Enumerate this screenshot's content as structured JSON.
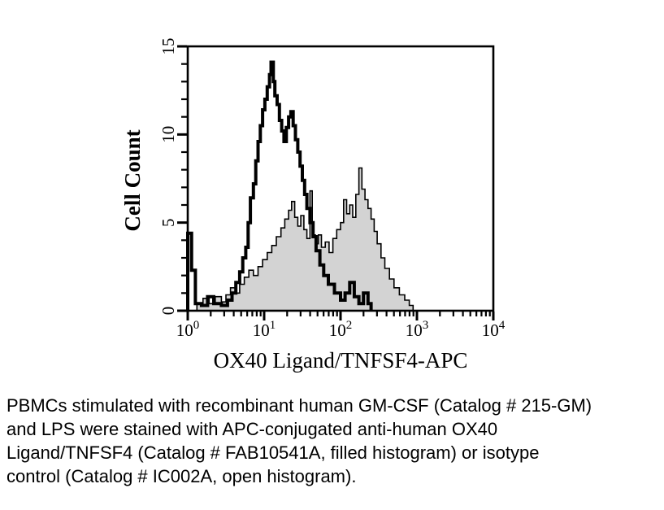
{
  "figure": {
    "y_axis": {
      "label": "Cell Count",
      "ticks": [
        0,
        5,
        10,
        15
      ],
      "minor_step": 1,
      "max": 15
    },
    "x_axis": {
      "label": "OX40 Ligand/TNFSF4-APC",
      "tick_base": "10",
      "decade_exponents": [
        0,
        1,
        2,
        3,
        4
      ]
    },
    "colors": {
      "frame": "#000000",
      "open_stroke": "#000000",
      "filled_fill": "#d3d3d3",
      "filled_stroke": "#000000",
      "background": "#ffffff"
    }
  },
  "chart_data": {
    "type": "area",
    "subtype": "flow-cytometry-overlay-histogram",
    "title": "",
    "xlabel": "OX40 Ligand/TNFSF4-APC",
    "ylabel": "Cell Count",
    "x_scale": "log10",
    "xlim_log10": [
      0,
      4
    ],
    "ylim": [
      0,
      15
    ],
    "grid": false,
    "legend": "none (styles described in caption)",
    "series": [
      {
        "name": "anti-human OX40 Ligand/TNFSF4 (FAB10541A, filled histogram)",
        "style": "filled",
        "fill": "#d3d3d3",
        "stroke": "#000000",
        "stroke_width": 1.6,
        "points_log10x_count": [
          [
            0.12,
            0.4
          ],
          [
            0.2,
            0.7
          ],
          [
            0.28,
            0.4
          ],
          [
            0.36,
            0.8
          ],
          [
            0.44,
            0.5
          ],
          [
            0.5,
            0.9
          ],
          [
            0.56,
            1.3
          ],
          [
            0.62,
            1.0
          ],
          [
            0.68,
            1.5
          ],
          [
            0.74,
            1.9
          ],
          [
            0.8,
            2.3
          ],
          [
            0.86,
            2.0
          ],
          [
            0.92,
            2.5
          ],
          [
            0.98,
            2.9
          ],
          [
            1.04,
            3.3
          ],
          [
            1.1,
            3.7
          ],
          [
            1.16,
            4.2
          ],
          [
            1.22,
            4.7
          ],
          [
            1.27,
            5.2
          ],
          [
            1.32,
            5.7
          ],
          [
            1.36,
            6.2
          ],
          [
            1.4,
            5.3
          ],
          [
            1.44,
            4.8
          ],
          [
            1.48,
            5.4
          ],
          [
            1.52,
            4.6
          ],
          [
            1.56,
            4.1
          ],
          [
            1.6,
            6.8
          ],
          [
            1.63,
            4.3
          ],
          [
            1.67,
            3.8
          ],
          [
            1.71,
            4.3
          ],
          [
            1.75,
            3.6
          ],
          [
            1.8,
            3.9
          ],
          [
            1.85,
            3.3
          ],
          [
            1.9,
            4.1
          ],
          [
            1.95,
            4.6
          ],
          [
            2.0,
            5.0
          ],
          [
            2.04,
            6.3
          ],
          [
            2.08,
            5.5
          ],
          [
            2.12,
            6.0
          ],
          [
            2.16,
            5.3
          ],
          [
            2.2,
            6.6
          ],
          [
            2.24,
            8.1
          ],
          [
            2.28,
            6.9
          ],
          [
            2.32,
            6.3
          ],
          [
            2.36,
            5.8
          ],
          [
            2.4,
            5.2
          ],
          [
            2.44,
            4.5
          ],
          [
            2.48,
            3.8
          ],
          [
            2.53,
            3.0
          ],
          [
            2.58,
            2.4
          ],
          [
            2.64,
            1.8
          ],
          [
            2.7,
            1.3
          ],
          [
            2.77,
            0.9
          ],
          [
            2.84,
            0.6
          ],
          [
            2.9,
            0.3
          ],
          [
            2.95,
            0.0
          ]
        ]
      },
      {
        "name": "isotype control (IC002A, open histogram)",
        "style": "open",
        "fill": "none",
        "stroke": "#000000",
        "stroke_width": 4,
        "points_log10x_count": [
          [
            0.0,
            4.4
          ],
          [
            0.05,
            2.3
          ],
          [
            0.1,
            0.4
          ],
          [
            0.18,
            0.3
          ],
          [
            0.26,
            0.8
          ],
          [
            0.34,
            0.4
          ],
          [
            0.44,
            0.3
          ],
          [
            0.52,
            0.6
          ],
          [
            0.58,
            1.0
          ],
          [
            0.63,
            1.6
          ],
          [
            0.68,
            2.2
          ],
          [
            0.72,
            3.0
          ],
          [
            0.76,
            3.6
          ],
          [
            0.79,
            5.0
          ],
          [
            0.82,
            6.4
          ],
          [
            0.86,
            7.2
          ],
          [
            0.89,
            8.5
          ],
          [
            0.92,
            9.6
          ],
          [
            0.95,
            10.5
          ],
          [
            0.98,
            11.4
          ],
          [
            1.01,
            12.0
          ],
          [
            1.04,
            12.7
          ],
          [
            1.07,
            13.4
          ],
          [
            1.09,
            14.1
          ],
          [
            1.12,
            13.0
          ],
          [
            1.14,
            12.2
          ],
          [
            1.17,
            11.7
          ],
          [
            1.2,
            10.8
          ],
          [
            1.23,
            10.2
          ],
          [
            1.26,
            9.6
          ],
          [
            1.29,
            10.4
          ],
          [
            1.32,
            11.0
          ],
          [
            1.35,
            11.3
          ],
          [
            1.38,
            10.5
          ],
          [
            1.41,
            9.7
          ],
          [
            1.44,
            9.0
          ],
          [
            1.47,
            8.2
          ],
          [
            1.5,
            7.4
          ],
          [
            1.53,
            6.6
          ],
          [
            1.56,
            5.8
          ],
          [
            1.6,
            5.0
          ],
          [
            1.64,
            4.2
          ],
          [
            1.68,
            3.4
          ],
          [
            1.73,
            2.6
          ],
          [
            1.78,
            2.0
          ],
          [
            1.84,
            1.5
          ],
          [
            1.92,
            1.0
          ],
          [
            2.0,
            0.6
          ],
          [
            2.06,
            1.0
          ],
          [
            2.12,
            1.6
          ],
          [
            2.18,
            0.8
          ],
          [
            2.24,
            0.4
          ],
          [
            2.3,
            1.0
          ],
          [
            2.36,
            0.4
          ],
          [
            2.4,
            0.0
          ]
        ]
      }
    ]
  },
  "caption": {
    "lines": [
      "PBMCs stimulated with recombinant human GM-CSF (Catalog # 215-GM)",
      "and LPS were stained with APC-conjugated anti-human OX40",
      "Ligand/TNFSF4 (Catalog # FAB10541A, filled histogram) or isotype",
      "control (Catalog # IC002A, open histogram)."
    ]
  }
}
